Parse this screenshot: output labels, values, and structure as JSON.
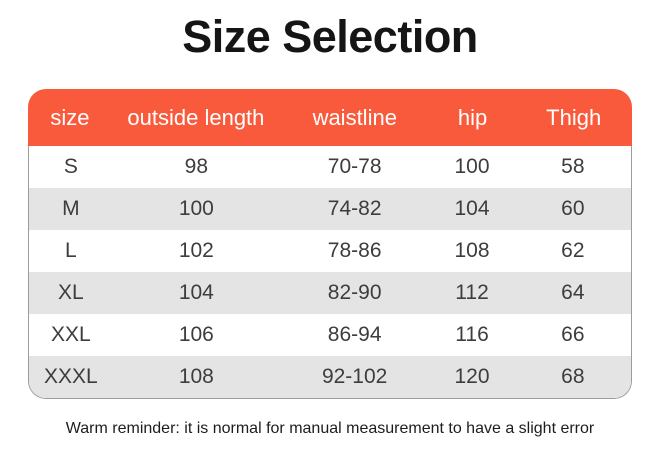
{
  "title": "Size Selection",
  "table": {
    "columns": [
      "size",
      "outside length",
      "waistline",
      "hip",
      "Thigh"
    ],
    "rows": [
      [
        "S",
        "98",
        "70-78",
        "100",
        "58"
      ],
      [
        "M",
        "100",
        "74-82",
        "104",
        "60"
      ],
      [
        "L",
        "102",
        "78-86",
        "108",
        "62"
      ],
      [
        "XL",
        "104",
        "82-90",
        "112",
        "64"
      ],
      [
        "XXL",
        "106",
        "86-94",
        "116",
        "66"
      ],
      [
        "XXXL",
        "108",
        "92-102",
        "120",
        "68"
      ]
    ]
  },
  "note": "Warm reminder: it is normal for manual measurement to have a slight error",
  "colors": {
    "header_bg": "#FA5A3C",
    "header_text": "#FFFFFF",
    "alt_row_bg": "#E4E4E4",
    "body_text": "#3D3D3D",
    "table_border": "#9C9C9C"
  }
}
